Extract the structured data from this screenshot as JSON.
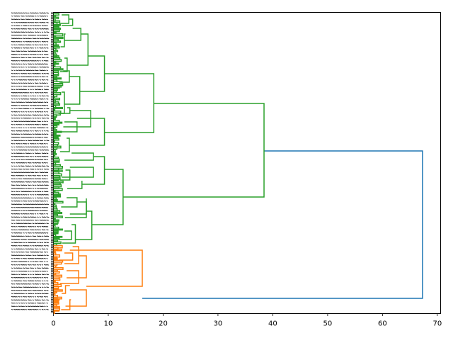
{
  "chart_data": {
    "type": "dendrogram",
    "orientation": "right",
    "x_range": [
      0,
      70.6
    ],
    "x_ticks": [
      0,
      10,
      20,
      30,
      40,
      50,
      60,
      70
    ],
    "leaf_labels_note": "",
    "colors": {
      "upper_cluster": "#2ca02c",
      "lower_cluster": "#ff7f0e",
      "root_link": "#1f77b4",
      "axis": "#000000"
    },
    "merges": [
      {
        "name": "root",
        "distance": 67.3,
        "color": "#1f77b4"
      },
      {
        "name": "green-top",
        "distance": 38.4,
        "color": "#2ca02c"
      },
      {
        "name": "green-upper",
        "distance": 18.3,
        "color": "#2ca02c"
      },
      {
        "name": "green-lower",
        "distance": 12.7,
        "color": "#2ca02c"
      },
      {
        "name": "orange-top",
        "distance": 16.2,
        "color": "#ff7f0e"
      }
    ]
  }
}
